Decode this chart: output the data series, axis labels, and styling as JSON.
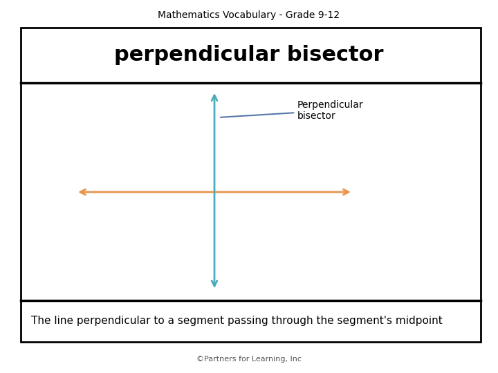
{
  "title": "Mathematics Vocabulary - Grade 9-12",
  "title_fontsize": 10,
  "title_font": "DejaVu Sans",
  "term": "perpendicular bisector",
  "term_fontsize": 22,
  "term_font": "DejaVu Sans",
  "term_fontweight": "bold",
  "definition": "The line perpendicular to a segment passing through the segment's midpoint",
  "definition_fontsize": 11,
  "definition_font": "DejaVu Sans",
  "footer": "©Partners for Learning, Inc",
  "footer_fontsize": 8,
  "annotation": "Perpendicular\nbisector",
  "annotation_fontsize": 10,
  "outer_box_color": "#000000",
  "background_color": "#ffffff",
  "teal_color": "#4AACBB",
  "orange_color": "#E8954A",
  "arrow_lw": 2.0
}
